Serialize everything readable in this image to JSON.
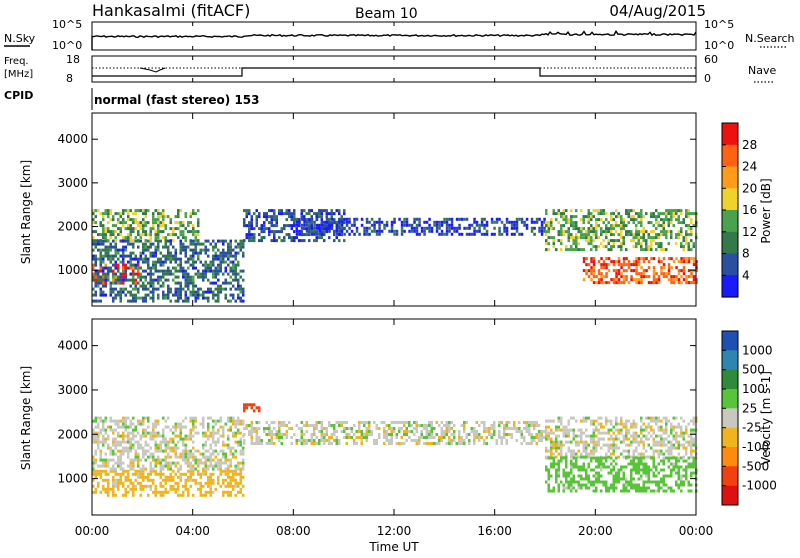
{
  "header": {
    "station": "Hankasalmi (fitACF)",
    "beam": "Beam 10",
    "date": "04/Aug/2015"
  },
  "noise_panel": {
    "left_label": "N.Sky",
    "right_label": "N.Search",
    "ticks": [
      "10^5",
      "10^0"
    ],
    "series_color": "#000000"
  },
  "freq_panel": {
    "left_label_line1": "Freq.",
    "left_label_line2": "[MHz]",
    "left_ticks": [
      "18",
      "8"
    ],
    "right_label": "Nave",
    "right_ticks": [
      "60",
      "0"
    ]
  },
  "cpid": {
    "label": "CPID",
    "text": "normal (fast stereo) 153"
  },
  "chart_data": [
    {
      "type": "heatmap",
      "parameter": "power",
      "ylabel": "Slant Range [km]",
      "xlim": [
        "00:00",
        "24:00"
      ],
      "ylim": [
        180,
        4600
      ],
      "yticks": [
        "1000",
        "2000",
        "3000",
        "4000"
      ],
      "colorbar": {
        "label": "Power [dB]",
        "ticks": [
          "4",
          "8",
          "12",
          "16",
          "20",
          "24",
          "28"
        ],
        "colors": [
          "#1a1aff",
          "#2b4fa0",
          "#35794a",
          "#4ba24e",
          "#f0d22e",
          "#ff9a1a",
          "#ff6210",
          "#ee1111"
        ]
      },
      "scatter_regions": [
        {
          "t0": 0.0,
          "t1": 1.8,
          "r0": 700,
          "r1": 1150,
          "value": 28
        },
        {
          "t0": 0.0,
          "t1": 4.2,
          "r0": 1700,
          "r1": 2400,
          "value": 14
        },
        {
          "t0": 0.0,
          "t1": 6.0,
          "r0": 300,
          "r1": 1700,
          "value": 8
        },
        {
          "t0": 6.0,
          "t1": 10.0,
          "r0": 1700,
          "r1": 2400,
          "value": 6
        },
        {
          "t0": 8.0,
          "t1": 18.0,
          "r0": 1800,
          "r1": 2200,
          "value": 5
        },
        {
          "t0": 18.0,
          "t1": 24.0,
          "r0": 1500,
          "r1": 2400,
          "value": 14
        },
        {
          "t0": 19.5,
          "t1": 24.0,
          "r0": 700,
          "r1": 1300,
          "value": 26
        }
      ]
    },
    {
      "type": "heatmap",
      "parameter": "velocity",
      "ylabel": "Slant Range [km]",
      "xlabel": "Time UT",
      "xlim": [
        "00:00",
        "24:00"
      ],
      "ylim": [
        180,
        4600
      ],
      "xticks": [
        "00:00",
        "04:00",
        "08:00",
        "12:00",
        "16:00",
        "20:00",
        "00:00"
      ],
      "yticks": [
        "1000",
        "2000",
        "3000",
        "4000"
      ],
      "colorbar": {
        "label": "Velocity [m s-1]",
        "ticks": [
          "1000",
          "500",
          "100",
          "25",
          "-25",
          "-100",
          "-500",
          "-1000"
        ],
        "colors": [
          "#1f4fb0",
          "#2e86b0",
          "#2f8a3c",
          "#58c43a",
          "#c8c8c0",
          "#f0b41e",
          "#ff8a10",
          "#f24010",
          "#dd1111"
        ]
      },
      "scatter_regions": [
        {
          "t0": 0.0,
          "t1": 6.0,
          "r0": 600,
          "r1": 1200,
          "value": -60
        },
        {
          "t0": 0.0,
          "t1": 6.0,
          "r0": 1200,
          "r1": 2400,
          "value": 0
        },
        {
          "t0": 6.0,
          "t1": 6.6,
          "r0": 2500,
          "r1": 2700,
          "value": -800
        },
        {
          "t0": 6.0,
          "t1": 18.0,
          "r0": 1800,
          "r1": 2300,
          "value": 0
        },
        {
          "t0": 18.0,
          "t1": 24.0,
          "r0": 1500,
          "r1": 2400,
          "value": 0
        },
        {
          "t0": 18.0,
          "t1": 24.0,
          "r0": 700,
          "r1": 1500,
          "value": 60
        }
      ]
    }
  ],
  "xlabel": "Time UT"
}
